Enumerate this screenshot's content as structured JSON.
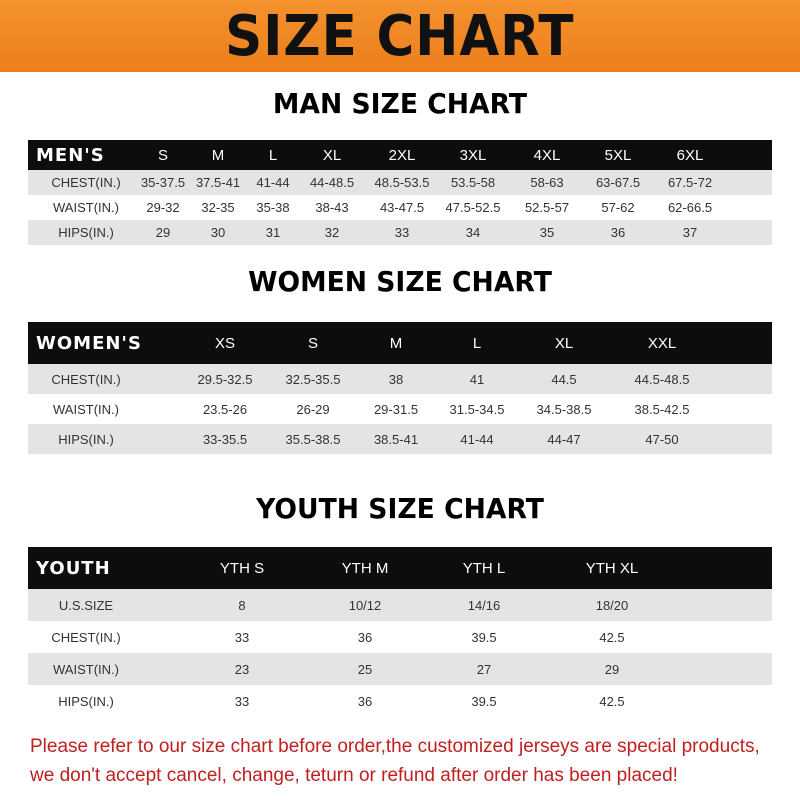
{
  "banner_title": "SIZE CHART",
  "men": {
    "title": "MAN SIZE CHART",
    "header": [
      "MEN'S",
      "S",
      "M",
      "L",
      "XL",
      "2XL",
      "3XL",
      "4XL",
      "5XL",
      "6XL"
    ],
    "rows": [
      [
        "CHEST(IN.)",
        "35-37.5",
        "37.5-41",
        "41-44",
        "44-48.5",
        "48.5-53.5",
        "53.5-58",
        "58-63",
        "63-67.5",
        "67.5-72"
      ],
      [
        "WAIST(IN.)",
        "29-32",
        "32-35",
        "35-38",
        "38-43",
        "43-47.5",
        "47.5-52.5",
        "52.5-57",
        "57-62",
        "62-66.5"
      ],
      [
        "HIPS(IN.)",
        "29",
        "30",
        "31",
        "32",
        "33",
        "34",
        "35",
        "36",
        "37"
      ]
    ]
  },
  "women": {
    "title": "WOMEN SIZE CHART",
    "header": [
      "WOMEN'S",
      "XS",
      "S",
      "M",
      "L",
      "XL",
      "XXL"
    ],
    "rows": [
      [
        "CHEST(IN.)",
        "29.5-32.5",
        "32.5-35.5",
        "38",
        "41",
        "44.5",
        "44.5-48.5"
      ],
      [
        "WAIST(IN.)",
        "23.5-26",
        "26-29",
        "29-31.5",
        "31.5-34.5",
        "34.5-38.5",
        "38.5-42.5"
      ],
      [
        "HIPS(IN.)",
        "33-35.5",
        "35.5-38.5",
        "38.5-41",
        "41-44",
        "44-47",
        "47-50"
      ]
    ]
  },
  "youth": {
    "title": "YOUTH SIZE CHART",
    "header": [
      "YOUTH",
      "YTH S",
      "YTH M",
      "YTH L",
      "YTH XL"
    ],
    "rows": [
      [
        "U.S.SIZE",
        "8",
        "10/12",
        "14/16",
        "18/20"
      ],
      [
        "CHEST(IN.)",
        "33",
        "36",
        "39.5",
        "42.5"
      ],
      [
        "WAIST(IN.)",
        "23",
        "25",
        "27",
        "29"
      ],
      [
        "HIPS(IN.)",
        "33",
        "36",
        "39.5",
        "42.5"
      ]
    ]
  },
  "footer": {
    "line1": "Please refer to our size chart before order,the customized jerseys are special products,",
    "line2": "we don't accept cancel, change, teturn or refund after order has been placed!"
  },
  "colors": {
    "banner": "#f08a24",
    "header_row": "#0d0d0d",
    "stripe": "#e4e4e4",
    "notice": "#c0201f"
  }
}
